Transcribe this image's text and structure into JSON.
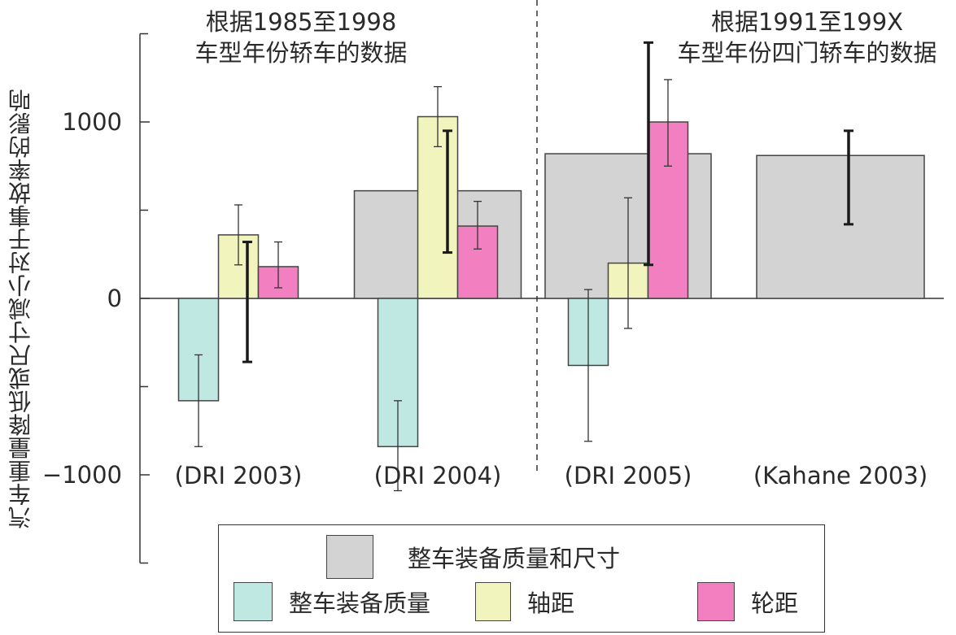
{
  "chart_data": {
    "type": "bar",
    "ylabel": "汽车重量降低或尺寸减小对于事故率的影响",
    "ylim": [
      -1500,
      1500
    ],
    "yticks": [
      -1000,
      0,
      1000
    ],
    "ytick_labels": [
      "−1000",
      "0",
      "1000"
    ],
    "annotations": [
      {
        "lines": [
          "根据1985至1998",
          "车型年份轿车的数据"
        ],
        "applies_to": [
          "DRI 2003",
          "DRI 2004"
        ]
      },
      {
        "lines": [
          "根据1991至199X",
          "车型年份四门轿车的数据"
        ],
        "applies_to": [
          "DRI 2005",
          "Kahane 2003"
        ]
      }
    ],
    "categories": [
      "(DRI 2003)",
      "(DRI 2004)",
      "(DRI 2005)",
      "(Kahane 2003)"
    ],
    "series": [
      {
        "name": "整车装备质量和尺寸",
        "color": "#d3d3d3",
        "values": [
          null,
          610,
          820,
          810
        ],
        "err_low": [
          -360,
          260,
          190,
          420
        ],
        "err_high": [
          320,
          950,
          1450,
          950
        ]
      },
      {
        "name": "整车装备质量",
        "color": "#c0e8e2",
        "values": [
          -580,
          -840,
          -380,
          null
        ],
        "err_low": [
          -840,
          -1090,
          -810,
          null
        ],
        "err_high": [
          -320,
          -580,
          50,
          null
        ]
      },
      {
        "name": "轴距",
        "color": "#f2f4bd",
        "values": [
          360,
          1030,
          200,
          null
        ],
        "err_low": [
          190,
          860,
          -170,
          null
        ],
        "err_high": [
          530,
          1200,
          570,
          null
        ]
      },
      {
        "name": "轮距",
        "color": "#f27fc0",
        "values": [
          180,
          410,
          1000,
          null
        ],
        "err_low": [
          60,
          280,
          750,
          null
        ],
        "err_high": [
          320,
          550,
          1240,
          null
        ]
      }
    ],
    "legend": {
      "position": "bottom",
      "entries": [
        "整车装备质量和尺寸",
        "整车装备质量",
        "轴距",
        "轮距"
      ]
    }
  },
  "colors": {
    "combined": "#d3d3d3",
    "curb_weight": "#c0e8e2",
    "wheelbase": "#f2f4bd",
    "track": "#f27fc0"
  }
}
